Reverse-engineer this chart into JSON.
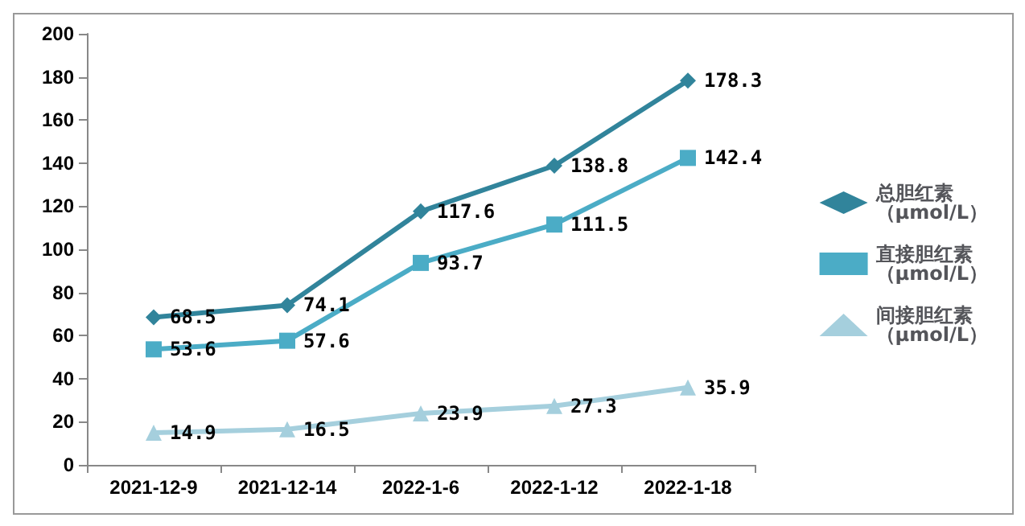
{
  "chart_data": {
    "type": "line",
    "categories": [
      "2021-12-9",
      "2021-12-14",
      "2022-1-6",
      "2022-1-12",
      "2022-1-18"
    ],
    "series": [
      {
        "name": "总胆红素（μmol/L）",
        "color": "#31849b",
        "marker": "diamond",
        "values": [
          68.5,
          74.1,
          117.6,
          138.8,
          178.3
        ]
      },
      {
        "name": "直接胆红素（μmol/L）",
        "color": "#4bacc6",
        "marker": "square",
        "values": [
          53.6,
          57.6,
          93.7,
          111.5,
          142.4
        ]
      },
      {
        "name": "间接胆红素（μmol/L）",
        "color": "#a5cfdd",
        "marker": "triangle",
        "values": [
          14.9,
          16.5,
          23.9,
          27.3,
          35.9
        ]
      }
    ],
    "ylim": [
      0,
      200
    ],
    "yticks": [
      0,
      20,
      40,
      60,
      80,
      100,
      120,
      140,
      160,
      180,
      200
    ],
    "grid": false,
    "legend": "right",
    "data_labels": true
  }
}
